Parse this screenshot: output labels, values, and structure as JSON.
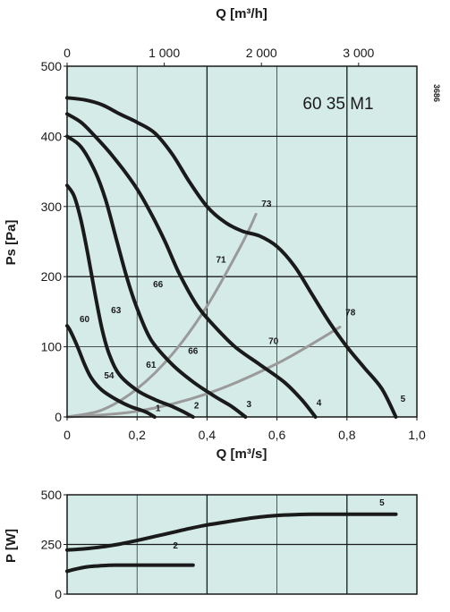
{
  "chart_data": [
    {
      "type": "line",
      "title": "60 35 M1",
      "code": "3686",
      "xlabel": "Q [m³/s]",
      "ylabel": "Ps [Pa]",
      "x2label": "Q [m³/h]",
      "xlim": [
        0,
        1.0
      ],
      "ylim": [
        0,
        500
      ],
      "x_ticks": [
        0,
        0.2,
        0.4,
        0.6,
        0.8,
        1.0
      ],
      "x_tick_labels": [
        "0",
        "0,2",
        "0,4",
        "0,6",
        "0,8",
        "1,0"
      ],
      "y_ticks": [
        0,
        100,
        200,
        300,
        400,
        500
      ],
      "y_tick_labels": [
        "0",
        "100",
        "200",
        "300",
        "400",
        "500"
      ],
      "x2_ticks_m3h": [
        0,
        1000,
        2000,
        3000
      ],
      "x2_tick_labels": [
        "0",
        "1 000",
        "2 000",
        "3 000"
      ],
      "grid": true,
      "series": [
        {
          "name": "1",
          "x": [
            0,
            0.01,
            0.03,
            0.05,
            0.07,
            0.1,
            0.14,
            0.18,
            0.21,
            0.23,
            0.25
          ],
          "y": [
            130,
            122,
            100,
            75,
            55,
            38,
            25,
            15,
            10,
            6,
            0
          ]
        },
        {
          "name": "2",
          "x": [
            0,
            0.02,
            0.04,
            0.06,
            0.08,
            0.1,
            0.12,
            0.15,
            0.2,
            0.25,
            0.3,
            0.33,
            0.36
          ],
          "y": [
            330,
            315,
            280,
            230,
            175,
            125,
            90,
            60,
            38,
            25,
            15,
            8,
            0
          ]
        },
        {
          "name": "3",
          "x": [
            0,
            0.04,
            0.08,
            0.11,
            0.14,
            0.17,
            0.2,
            0.24,
            0.3,
            0.36,
            0.42,
            0.47,
            0.51
          ],
          "y": [
            400,
            385,
            350,
            310,
            255,
            200,
            155,
            110,
            75,
            50,
            30,
            15,
            0
          ]
        },
        {
          "name": "4",
          "x": [
            0,
            0.04,
            0.08,
            0.12,
            0.16,
            0.2,
            0.24,
            0.28,
            0.32,
            0.37,
            0.42,
            0.48,
            0.55,
            0.62,
            0.67,
            0.71
          ],
          "y": [
            432,
            420,
            400,
            378,
            353,
            325,
            290,
            250,
            205,
            160,
            130,
            100,
            75,
            50,
            25,
            0
          ]
        },
        {
          "name": "5",
          "x": [
            0,
            0.05,
            0.1,
            0.15,
            0.2,
            0.25,
            0.3,
            0.35,
            0.4,
            0.45,
            0.5,
            0.55,
            0.6,
            0.65,
            0.7,
            0.75,
            0.8,
            0.85,
            0.9,
            0.94
          ],
          "y": [
            455,
            452,
            445,
            432,
            420,
            405,
            375,
            335,
            300,
            278,
            265,
            258,
            243,
            215,
            175,
            135,
            100,
            70,
            40,
            0
          ]
        }
      ],
      "system_curves": [
        {
          "x": [
            0,
            0.1,
            0.2,
            0.3,
            0.4,
            0.5,
            0.54
          ],
          "y": [
            0,
            10,
            40,
            89,
            158,
            247,
            289
          ]
        },
        {
          "x": [
            0,
            0.2,
            0.4,
            0.6,
            0.78
          ],
          "y": [
            0,
            8,
            33,
            76,
            128
          ]
        }
      ],
      "annotations": [
        {
          "text": "60",
          "x": 0.05,
          "y": 135
        },
        {
          "text": "63",
          "x": 0.14,
          "y": 148
        },
        {
          "text": "54",
          "x": 0.12,
          "y": 55
        },
        {
          "text": "61",
          "x": 0.24,
          "y": 70
        },
        {
          "text": "66",
          "x": 0.26,
          "y": 185
        },
        {
          "text": "66",
          "x": 0.36,
          "y": 90
        },
        {
          "text": "71",
          "x": 0.44,
          "y": 220
        },
        {
          "text": "70",
          "x": 0.59,
          "y": 104
        },
        {
          "text": "73",
          "x": 0.57,
          "y": 300
        },
        {
          "text": "78",
          "x": 0.81,
          "y": 145
        },
        {
          "text": "1",
          "x": 0.26,
          "y": 8
        },
        {
          "text": "2",
          "x": 0.37,
          "y": 12
        },
        {
          "text": "3",
          "x": 0.52,
          "y": 14
        },
        {
          "text": "4",
          "x": 0.72,
          "y": 16
        },
        {
          "text": "5",
          "x": 0.96,
          "y": 22
        }
      ]
    },
    {
      "type": "line",
      "ylabel": "P [W]",
      "xlim": [
        0,
        1.0
      ],
      "ylim": [
        0,
        500
      ],
      "y_ticks": [
        0,
        250,
        500
      ],
      "y_tick_labels": [
        "0",
        "250",
        "500"
      ],
      "grid": true,
      "series": [
        {
          "name": "5",
          "x": [
            0,
            0.05,
            0.1,
            0.15,
            0.2,
            0.25,
            0.3,
            0.35,
            0.4,
            0.45,
            0.5,
            0.55,
            0.6,
            0.65,
            0.7,
            0.75,
            0.8,
            0.85,
            0.9,
            0.94
          ],
          "y": [
            222,
            228,
            238,
            252,
            270,
            290,
            310,
            330,
            348,
            362,
            376,
            388,
            396,
            400,
            402,
            402,
            402,
            402,
            402,
            402
          ]
        },
        {
          "name": "2",
          "x": [
            0,
            0.03,
            0.06,
            0.09,
            0.12,
            0.15,
            0.2,
            0.25,
            0.3,
            0.36
          ],
          "y": [
            115,
            128,
            138,
            142,
            145,
            146,
            146,
            146,
            146,
            146
          ]
        }
      ],
      "annotations": [
        {
          "text": "5",
          "x": 0.9,
          "y": 445
        },
        {
          "text": "2",
          "x": 0.31,
          "y": 230
        }
      ]
    }
  ]
}
